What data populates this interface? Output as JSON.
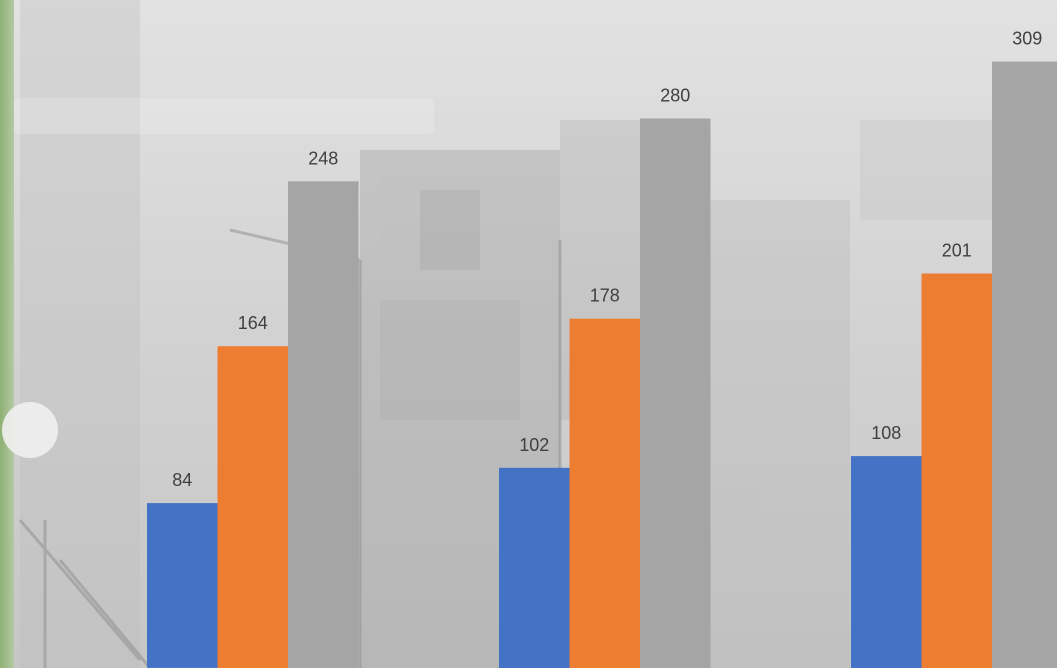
{
  "chart_data": {
    "type": "bar",
    "categories": [
      "",
      "",
      ""
    ],
    "series": [
      {
        "values": [
          84,
          102,
          108
        ],
        "color": "#4472C4"
      },
      {
        "values": [
          164,
          178,
          201
        ],
        "color": "#ED7D31"
      },
      {
        "values": [
          248,
          280,
          309
        ],
        "color": "#A5A5A5"
      }
    ],
    "ylim": [
      0,
      320
    ],
    "grid": false,
    "legend": "none",
    "data_labels": true
  },
  "background": {
    "photo_tone": "#d4d4d4",
    "left_strip_color": "#9dbb85"
  }
}
